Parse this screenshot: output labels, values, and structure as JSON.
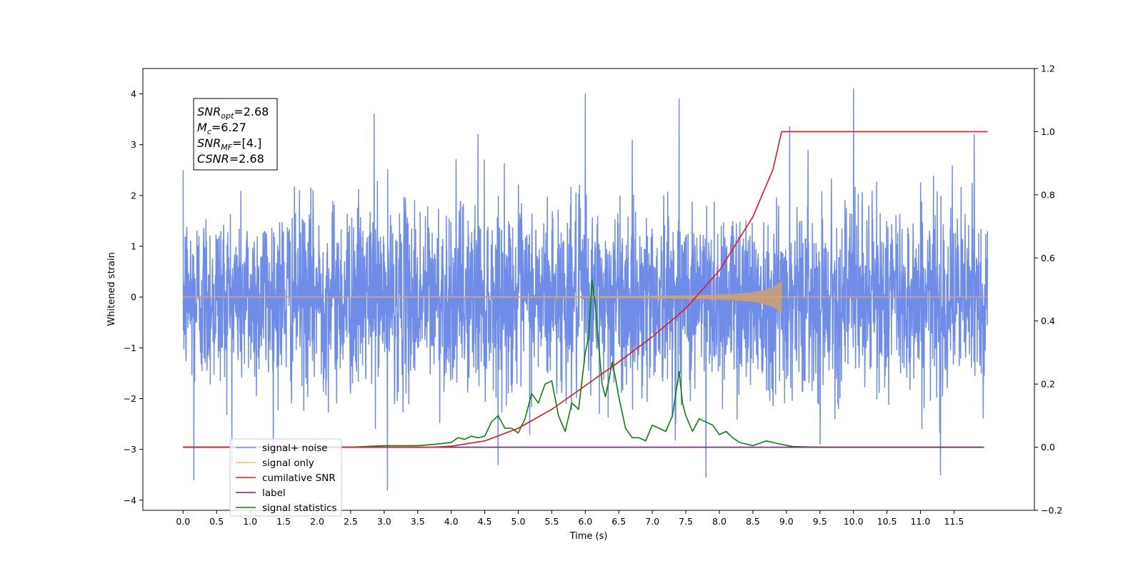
{
  "chart_data": {
    "type": "line",
    "xlabel": "Time (s)",
    "ylabel_left": "Whitened strain",
    "xlim": [
      -0.6,
      12.7
    ],
    "ylim_left": [
      -4.2,
      4.5
    ],
    "ylim_right": [
      -0.2,
      1.2
    ],
    "x_ticks": [
      "0.0",
      "0.5",
      "1.0",
      "1.5",
      "2.0",
      "2.5",
      "3.0",
      "3.5",
      "4.0",
      "4.5",
      "5.0",
      "5.5",
      "6.0",
      "6.5",
      "7.0",
      "7.5",
      "8.0",
      "8.5",
      "9.0",
      "9.5",
      "10.0",
      "10.5",
      "11.0",
      "11.5"
    ],
    "y_ticks_left": [
      "4",
      "3",
      "2",
      "1",
      "0",
      "−1",
      "−2",
      "−3",
      "−4"
    ],
    "y_ticks_right": [
      "1.2",
      "1.0",
      "0.8",
      "0.6",
      "0.4",
      "0.2",
      "0.0",
      "−0.2"
    ],
    "grid": false,
    "legend_position": "lower-left",
    "annotation": {
      "lines": [
        {
          "base": "SNR",
          "sub": "opt",
          "value": "=2.68"
        },
        {
          "base": "M",
          "sub": "c",
          "value": "=6.27"
        },
        {
          "base": "SNR",
          "sub": "MF",
          "value": "=[4.]"
        },
        {
          "base": "CSNR",
          "sub": "",
          "value": "=2.68"
        }
      ]
    },
    "series": [
      {
        "name": "signal+ noise",
        "color": "#6f8de8",
        "axis": "left",
        "x_range": [
          0.0,
          12.0
        ],
        "sigma": 0.9,
        "peaks": [
          [
            0.16,
            -3.6
          ],
          [
            2.85,
            3.6
          ],
          [
            3.05,
            -3.8
          ],
          [
            4.4,
            3.2
          ],
          [
            6.0,
            4.0
          ],
          [
            7.4,
            3.9
          ],
          [
            7.8,
            -3.55
          ],
          [
            9.05,
            3.35
          ],
          [
            10.0,
            4.1
          ],
          [
            11.3,
            -3.5
          ],
          [
            11.8,
            3.2
          ]
        ]
      },
      {
        "name": "signal only",
        "color": "#ffc04d",
        "axis": "left",
        "x_range": [
          0.0,
          12.0
        ],
        "merger_time": 8.93,
        "amplitude_at_merger": 0.33
      },
      {
        "name": "cumilative SNR",
        "color": "#e8141e",
        "axis": "right",
        "x_range": [
          0.0,
          12.0
        ],
        "x": [
          0.0,
          3.7,
          4.0,
          4.5,
          5.0,
          5.5,
          6.0,
          6.5,
          7.0,
          7.5,
          8.0,
          8.5,
          8.8,
          8.93,
          12.0
        ],
        "y": [
          0.0,
          0.0,
          0.003,
          0.02,
          0.06,
          0.12,
          0.195,
          0.27,
          0.35,
          0.44,
          0.56,
          0.73,
          0.88,
          1.0,
          1.0
        ]
      },
      {
        "name": "label",
        "color": "#7b1a85",
        "axis": "right",
        "x": [
          0.0,
          11.95
        ],
        "y": [
          0.0,
          0.0
        ]
      },
      {
        "name": "signal statistics",
        "color": "#0a820a",
        "axis": "right",
        "x": [
          0.0,
          2.5,
          3.0,
          3.5,
          3.8,
          4.0,
          4.1,
          4.2,
          4.3,
          4.4,
          4.5,
          4.6,
          4.7,
          4.8,
          4.9,
          5.0,
          5.1,
          5.2,
          5.3,
          5.4,
          5.5,
          5.6,
          5.7,
          5.8,
          5.9,
          6.0,
          6.05,
          6.1,
          6.15,
          6.25,
          6.3,
          6.35,
          6.4,
          6.45,
          6.5,
          6.6,
          6.7,
          6.8,
          6.9,
          7.0,
          7.1,
          7.2,
          7.3,
          7.4,
          7.45,
          7.5,
          7.6,
          7.7,
          7.8,
          7.9,
          8.0,
          8.1,
          8.2,
          8.3,
          8.5,
          8.7,
          8.9,
          9.1,
          9.5,
          10.0,
          11.9
        ],
        "y": [
          0.0,
          0.0,
          0.005,
          0.005,
          0.01,
          0.015,
          0.03,
          0.025,
          0.035,
          0.03,
          0.035,
          0.08,
          0.1,
          0.06,
          0.06,
          0.045,
          0.09,
          0.17,
          0.14,
          0.2,
          0.21,
          0.1,
          0.05,
          0.14,
          0.12,
          0.3,
          0.35,
          0.53,
          0.45,
          0.2,
          0.16,
          0.21,
          0.27,
          0.22,
          0.16,
          0.06,
          0.03,
          0.03,
          0.02,
          0.07,
          0.06,
          0.05,
          0.1,
          0.24,
          0.14,
          0.1,
          0.05,
          0.09,
          0.08,
          0.07,
          0.04,
          0.05,
          0.03,
          0.015,
          0.005,
          0.02,
          0.01,
          0.002,
          0.0,
          0.0,
          0.0
        ]
      }
    ]
  }
}
